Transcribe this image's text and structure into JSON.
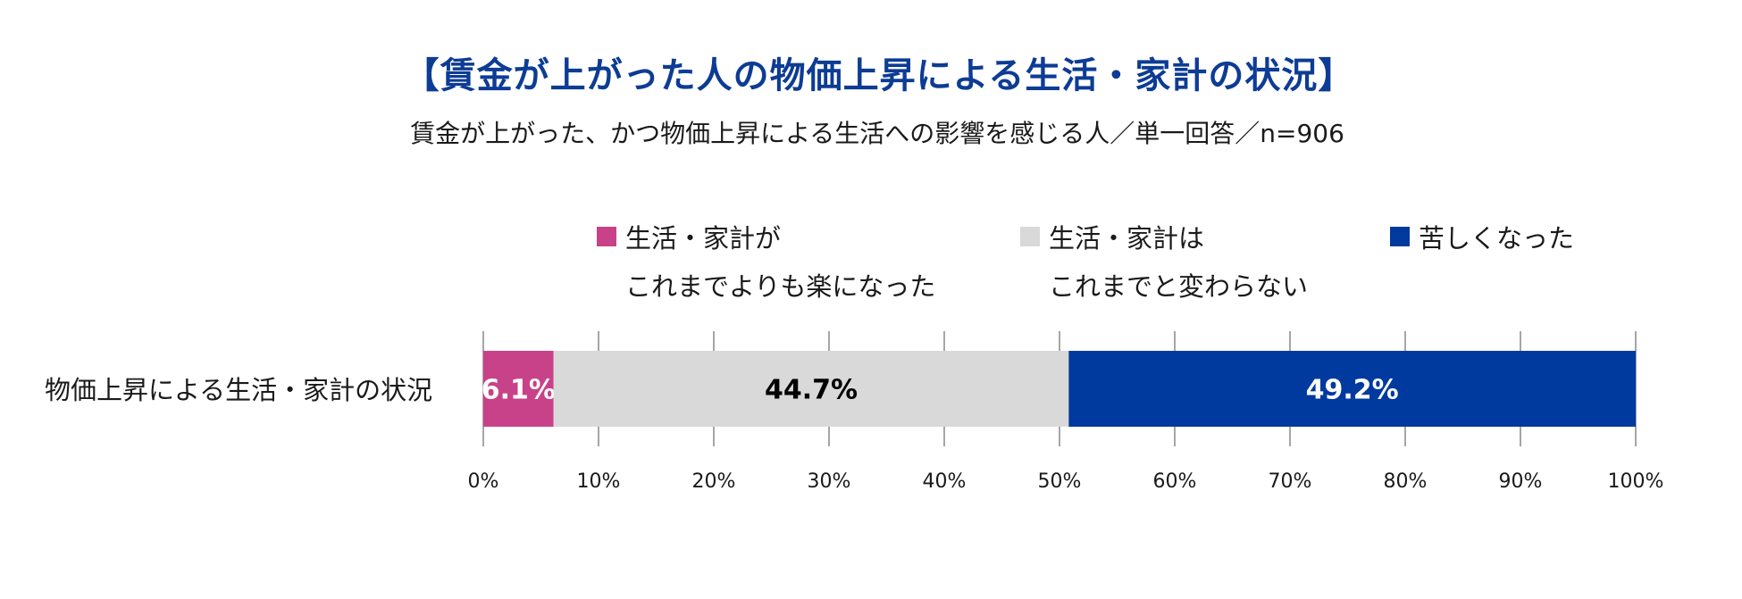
{
  "chart_data": {
    "type": "bar",
    "orientation": "horizontal",
    "stacked": true,
    "title": "【賃金が上がった人の物価上昇による生活・家計の状況】",
    "subtitle": "賃金が上がった、かつ物価上昇による生活への影響を感じる人／単一回答／n=906",
    "categories": [
      "物価上昇による生活・家計の状況"
    ],
    "series": [
      {
        "name": [
          "生活・家計が",
          "これまでよりも楽になった"
        ],
        "values": [
          6.1
        ],
        "label": "6.1%",
        "color": "#c8428a",
        "label_color": "#ffffff"
      },
      {
        "name": [
          "生活・家計は",
          "これまでと変わらない"
        ],
        "values": [
          44.7
        ],
        "label": "44.7%",
        "color": "#d9d9d9",
        "label_color": "#000000"
      },
      {
        "name": [
          "苦しくなった"
        ],
        "values": [
          49.2
        ],
        "label": "49.2%",
        "color": "#003a9e",
        "label_color": "#ffffff"
      }
    ],
    "x_ticks": [
      "0%",
      "10%",
      "20%",
      "30%",
      "40%",
      "50%",
      "60%",
      "70%",
      "80%",
      "90%",
      "100%"
    ],
    "xlim": [
      0,
      100
    ],
    "grid": true,
    "legend_position": "top"
  }
}
